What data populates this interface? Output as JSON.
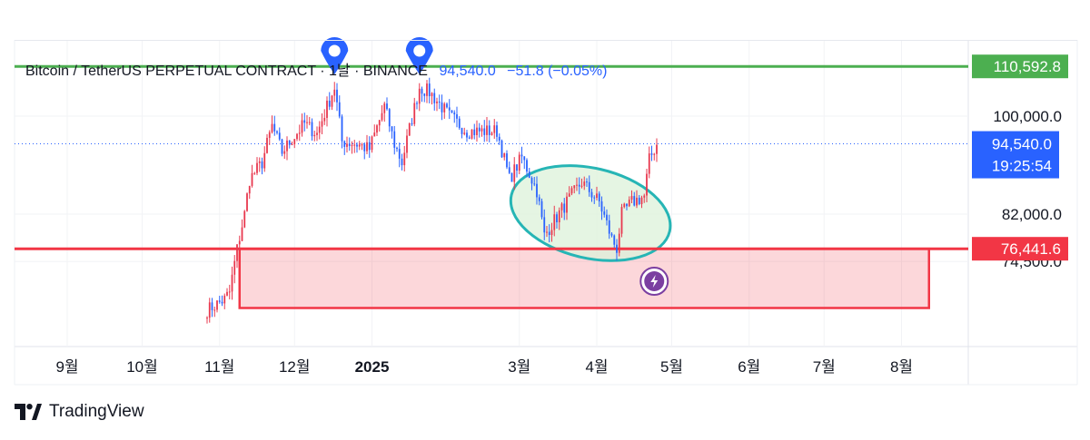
{
  "header": {
    "symbol": "Bitcoin / TetherUS PERPETUAL CONTRACT · 1날 · BINANCE",
    "last_price": "94,540.0",
    "change": "−51.8 (−0.05%)",
    "change_color": "#2962ff"
  },
  "branding": {
    "logo_icon": "tradingview-logo-icon",
    "name": "TradingView"
  },
  "colors": {
    "up_candle": "#e8384f",
    "down_candle": "#2962ff",
    "resistance": "#4caf50",
    "support": "#f23645",
    "ellipse_stroke": "#26b5b5",
    "ellipse_fill": "#dcf1d9",
    "flash_icon": "#7b3fa1"
  },
  "chart_data": {
    "type": "candlestick",
    "y_axis": {
      "scale": "log",
      "tick_labels": [
        "100,000.0",
        "82,000.0",
        "74,500.0"
      ]
    },
    "x_axis": {
      "tick_labels": [
        "9월",
        "10월",
        "11월",
        "12월",
        "2025",
        "3월",
        "4월",
        "5월",
        "6월",
        "7월",
        "8월"
      ],
      "tick_dates": [
        "2024-09-01",
        "2024-10-01",
        "2024-11-01",
        "2024-12-01",
        "2025-01-01",
        "2025-03-01",
        "2025-04-01",
        "2025-05-01",
        "2025-06-01",
        "2025-07-01",
        "2025-08-01"
      ]
    },
    "price_path": [
      [
        "2024-10-27",
        67500
      ],
      [
        "2024-11-03",
        69000
      ],
      [
        "2024-11-05",
        70000
      ],
      [
        "2024-11-08",
        76400
      ],
      [
        "2024-11-11",
        82000
      ],
      [
        "2024-11-13",
        88000
      ],
      [
        "2024-11-18",
        91000
      ],
      [
        "2024-11-22",
        98000
      ],
      [
        "2024-11-26",
        93000
      ],
      [
        "2024-12-05",
        98500
      ],
      [
        "2024-12-10",
        96500
      ],
      [
        "2024-12-17",
        106000
      ],
      [
        "2024-12-20",
        95000
      ],
      [
        "2024-12-26",
        94500
      ],
      [
        "2024-12-31",
        93500
      ],
      [
        "2025-01-06",
        102000
      ],
      [
        "2025-01-10",
        94500
      ],
      [
        "2025-01-13",
        91000
      ],
      [
        "2025-01-20",
        106000
      ],
      [
        "2025-01-24",
        105000
      ],
      [
        "2025-02-01",
        100000
      ],
      [
        "2025-02-08",
        97000
      ],
      [
        "2025-02-20",
        97000
      ],
      [
        "2025-02-25",
        88000
      ],
      [
        "2025-03-02",
        92000
      ],
      [
        "2025-03-08",
        86000
      ],
      [
        "2025-03-11",
        78500
      ],
      [
        "2025-03-20",
        84000
      ],
      [
        "2025-03-26",
        87500
      ],
      [
        "2025-04-02",
        84000
      ],
      [
        "2025-04-07",
        78000
      ],
      [
        "2025-04-09",
        76500
      ],
      [
        "2025-04-11",
        82000
      ],
      [
        "2025-04-15",
        84000
      ],
      [
        "2025-04-20",
        85000
      ],
      [
        "2025-04-22",
        91500
      ],
      [
        "2025-04-25",
        94500
      ]
    ],
    "annotations": [
      {
        "type": "horizontal_line",
        "price": 110592.8,
        "label": "110,592.8",
        "color": "#4caf50"
      },
      {
        "type": "horizontal_line",
        "price": 76441.6,
        "label": "76,441.6",
        "color": "#f23645"
      },
      {
        "type": "current_price_line",
        "price": 94540.0,
        "label": "94,540.0",
        "countdown": "19:25:54",
        "color": "#2962ff"
      },
      {
        "type": "rectangle",
        "from": "2024-11-09",
        "to": "2025-08-12",
        "price_top": 76441.6,
        "price_bottom": 67800,
        "color": "#f23645"
      },
      {
        "type": "ellipse",
        "from": "2025-02-25",
        "to": "2025-05-01",
        "price_top": 90000,
        "price_bottom": 75000,
        "color": "#26b5b5"
      },
      {
        "type": "marker",
        "date": "2024-12-17",
        "icon": "location-pin-icon"
      },
      {
        "type": "marker",
        "date": "2025-01-20",
        "icon": "location-pin-icon"
      },
      {
        "type": "marker",
        "date": "2025-04-24",
        "icon": "lightning-icon"
      }
    ]
  }
}
